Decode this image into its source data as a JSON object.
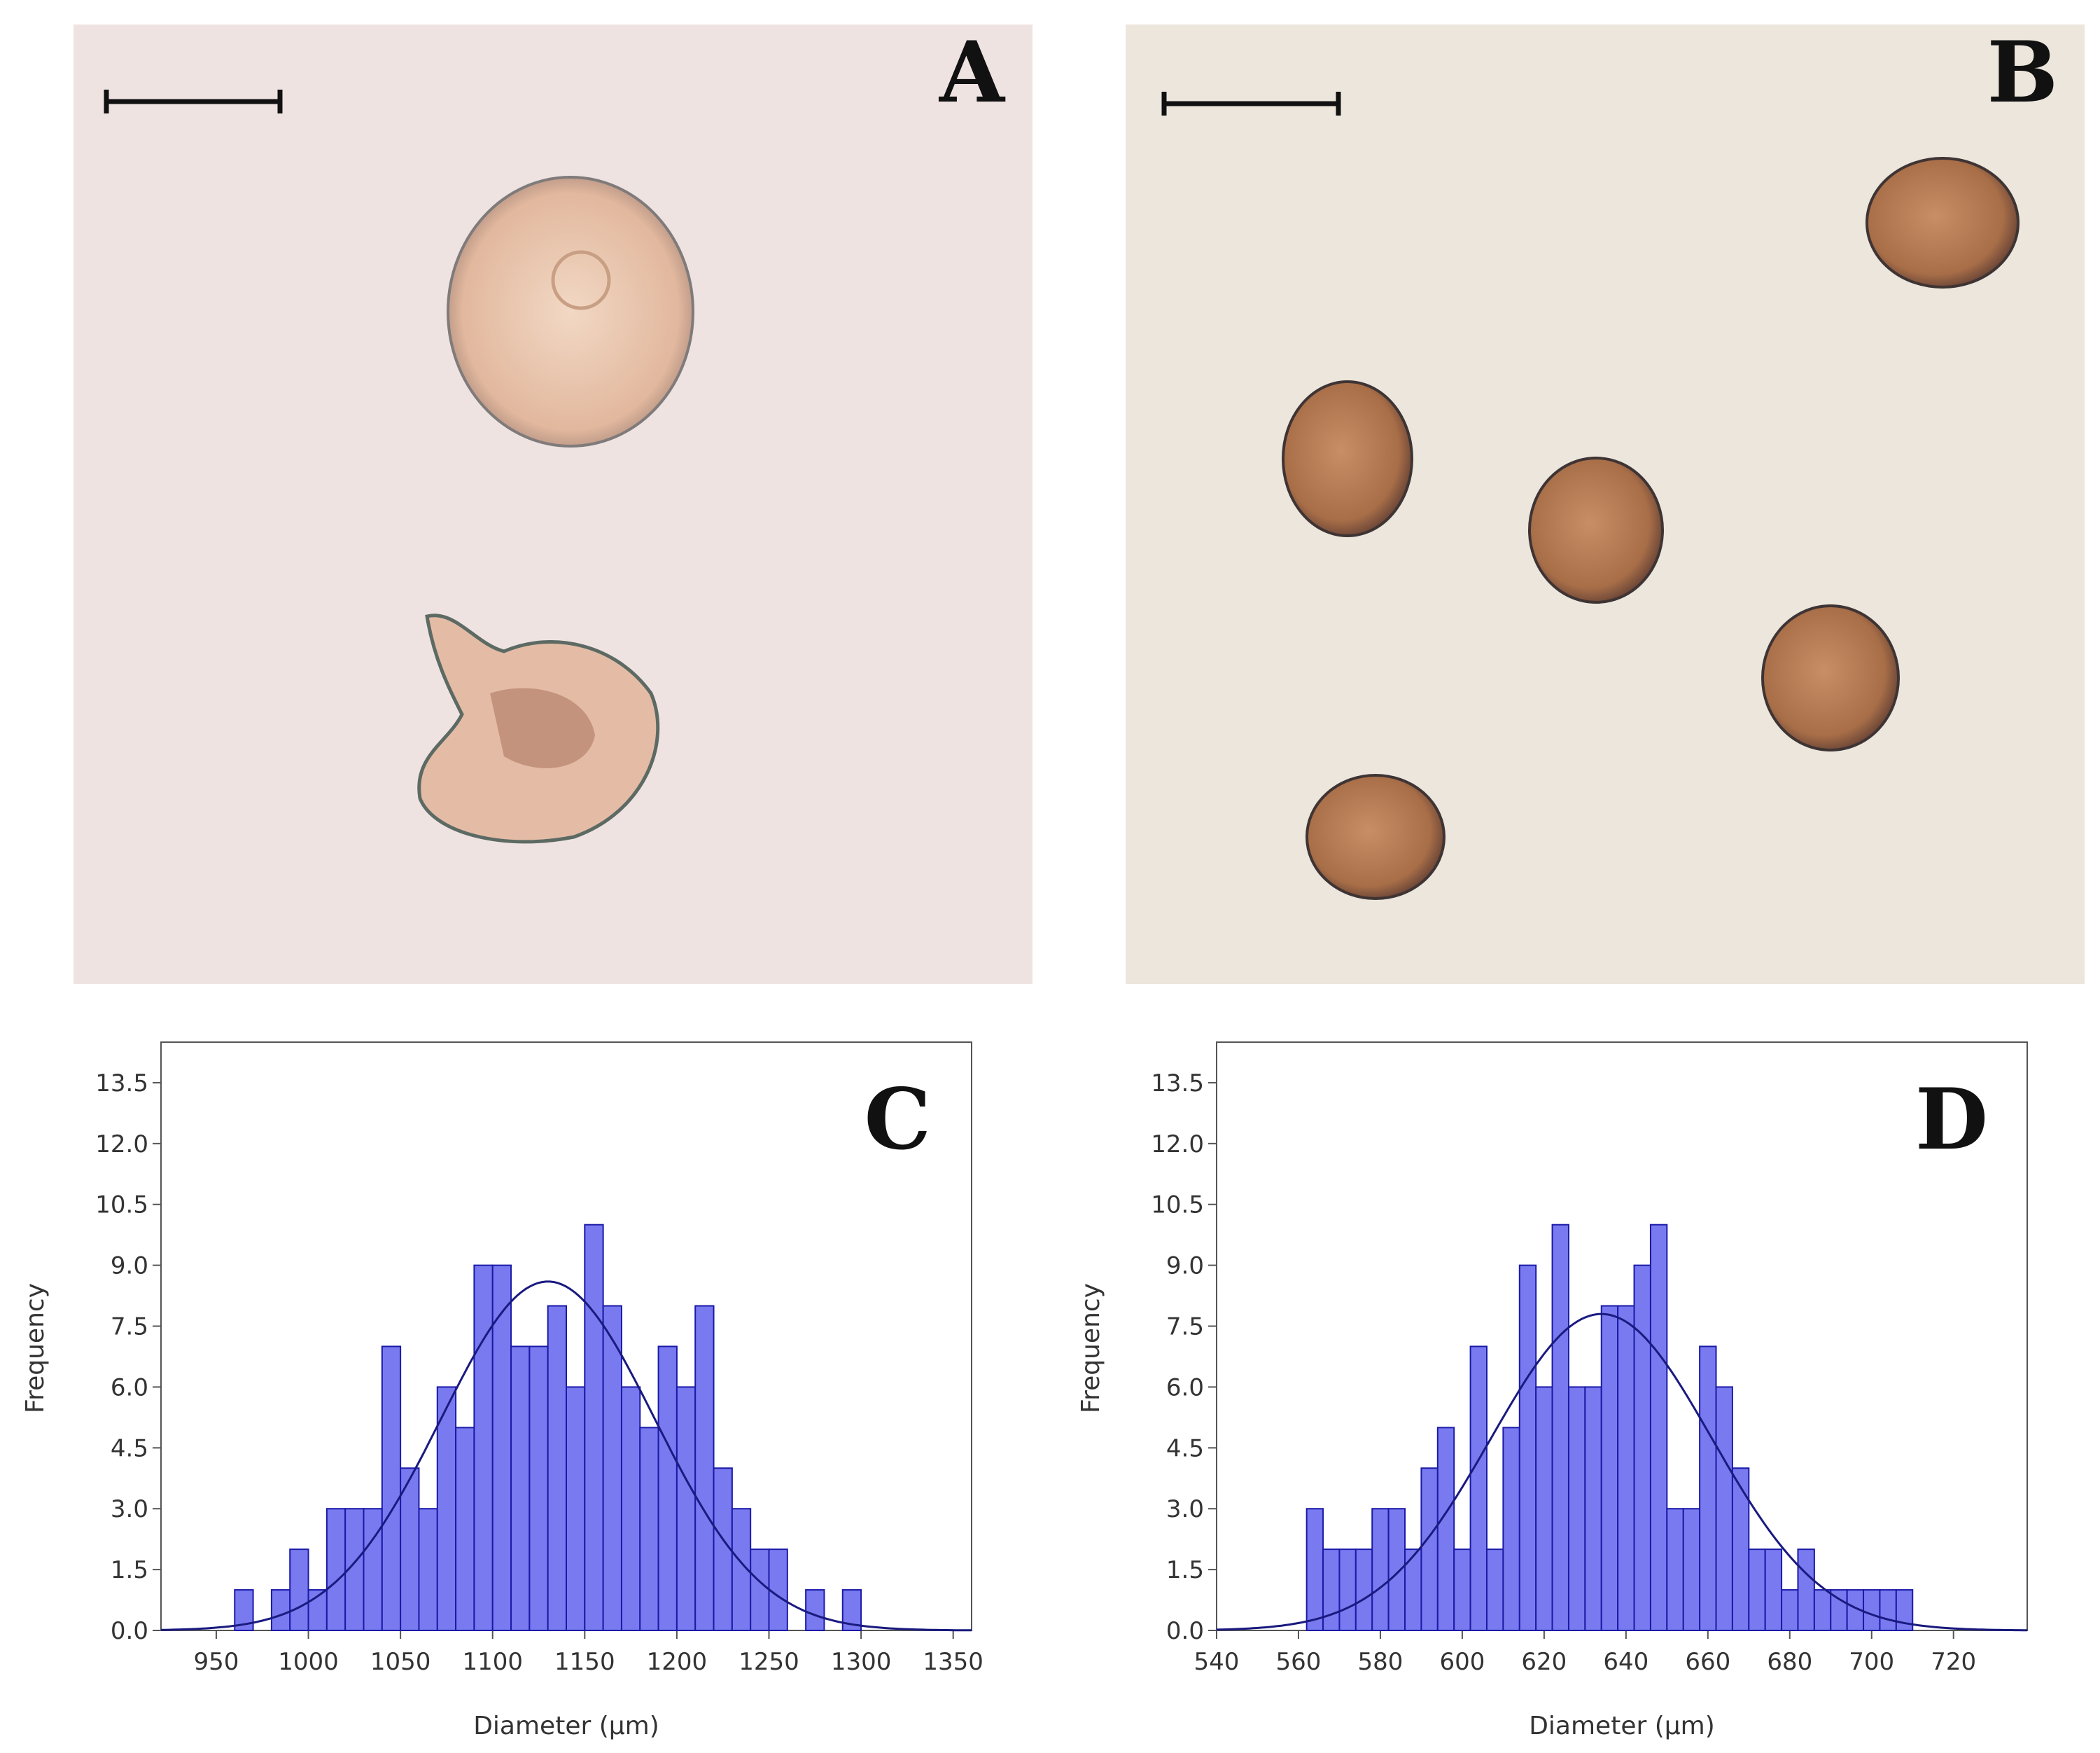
{
  "panels": {
    "a": {
      "letter": "A"
    },
    "b": {
      "letter": "B"
    },
    "c": {
      "letter": "C"
    },
    "d": {
      "letter": "D"
    }
  },
  "colors": {
    "bar_fill": "#7a7af0",
    "bar_stroke": "#1a1aa8",
    "fit_curve": "#1a1a80",
    "photo_a_bg": "#efe3e2",
    "photo_b_bg": "#ece6dc",
    "bead_a": "#e6c0a8",
    "bead_b": "#b77a52"
  },
  "chart_data": [
    {
      "panel": "C",
      "type": "bar",
      "xlabel": "Diameter (µm)",
      "ylabel": "Frequency",
      "xlim": [
        920,
        1360
      ],
      "ylim": [
        0,
        14.5
      ],
      "xticks": [
        950,
        1000,
        1050,
        1100,
        1150,
        1200,
        1250,
        1300,
        1350
      ],
      "yticks": [
        "0.0",
        "1.5",
        "3.0",
        "4.5",
        "6.0",
        "7.5",
        "9.0",
        "10.5",
        "12.0",
        "13.5"
      ],
      "bin_width": 10,
      "bin_starts": [
        960,
        970,
        980,
        990,
        1000,
        1010,
        1020,
        1030,
        1040,
        1050,
        1060,
        1070,
        1080,
        1090,
        1100,
        1110,
        1120,
        1130,
        1140,
        1150,
        1160,
        1170,
        1180,
        1190,
        1200,
        1210,
        1220,
        1230,
        1240,
        1250,
        1260,
        1270,
        1280,
        1290
      ],
      "values": [
        1,
        0,
        1,
        2,
        1,
        3,
        3,
        3,
        7,
        4,
        3,
        6,
        5,
        9,
        9,
        7,
        7,
        8,
        6,
        10,
        8,
        6,
        5,
        7,
        6,
        8,
        4,
        3,
        2,
        2,
        0,
        1,
        0,
        1
      ],
      "fit": {
        "mean": 1130,
        "sd": 58,
        "peak": 8.6
      }
    },
    {
      "panel": "D",
      "type": "bar",
      "xlabel": "Diameter (µm)",
      "ylabel": "Frequency",
      "xlim": [
        540,
        738
      ],
      "ylim": [
        0,
        14.5
      ],
      "xticks": [
        540,
        560,
        580,
        600,
        620,
        640,
        660,
        680,
        700,
        720
      ],
      "yticks": [
        "0.0",
        "1.5",
        "3.0",
        "4.5",
        "6.0",
        "7.5",
        "9.0",
        "10.5",
        "12.0",
        "13.5"
      ],
      "bin_width": 4,
      "bin_starts": [
        562,
        566,
        570,
        574,
        578,
        582,
        586,
        590,
        594,
        598,
        602,
        606,
        610,
        614,
        618,
        622,
        626,
        630,
        634,
        638,
        642,
        646,
        650,
        654,
        658,
        662,
        666,
        670,
        674,
        678,
        682,
        686,
        690,
        694,
        698,
        702,
        706
      ],
      "values": [
        3,
        2,
        2,
        2,
        3,
        3,
        2,
        4,
        5,
        2,
        7,
        2,
        5,
        9,
        6,
        10,
        6,
        6,
        8,
        8,
        9,
        10,
        3,
        3,
        7,
        6,
        4,
        2,
        2,
        1,
        2,
        1,
        1,
        1,
        1,
        1,
        1
      ],
      "fit": {
        "mean": 634,
        "sd": 27,
        "peak": 7.8
      }
    }
  ]
}
